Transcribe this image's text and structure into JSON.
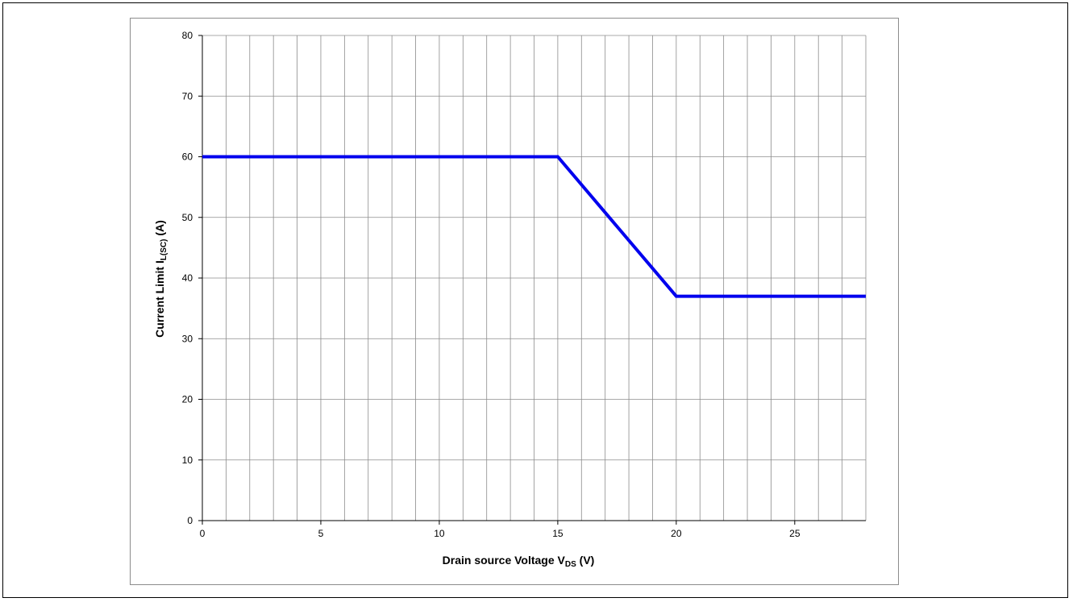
{
  "chart_data": {
    "type": "line",
    "title": "",
    "xlabel": {
      "main": "Drain source Voltage V",
      "sub": "DS",
      "unit": " (V)"
    },
    "ylabel": {
      "main": "Current Limit I",
      "sub": "L(SC)",
      "unit": " (A)"
    },
    "xlim": [
      0,
      28
    ],
    "ylim": [
      0,
      80
    ],
    "x_ticks": [
      0,
      5,
      10,
      15,
      20,
      25
    ],
    "y_ticks": [
      0,
      10,
      20,
      30,
      40,
      50,
      60,
      70,
      80
    ],
    "x_minor_grid_step": 1,
    "y_grid_step": 10,
    "grid": true,
    "legend": "none",
    "series": [
      {
        "color": "#0000ee",
        "x": [
          0,
          15,
          20,
          28
        ],
        "y": [
          60,
          60,
          37,
          37
        ]
      }
    ]
  }
}
